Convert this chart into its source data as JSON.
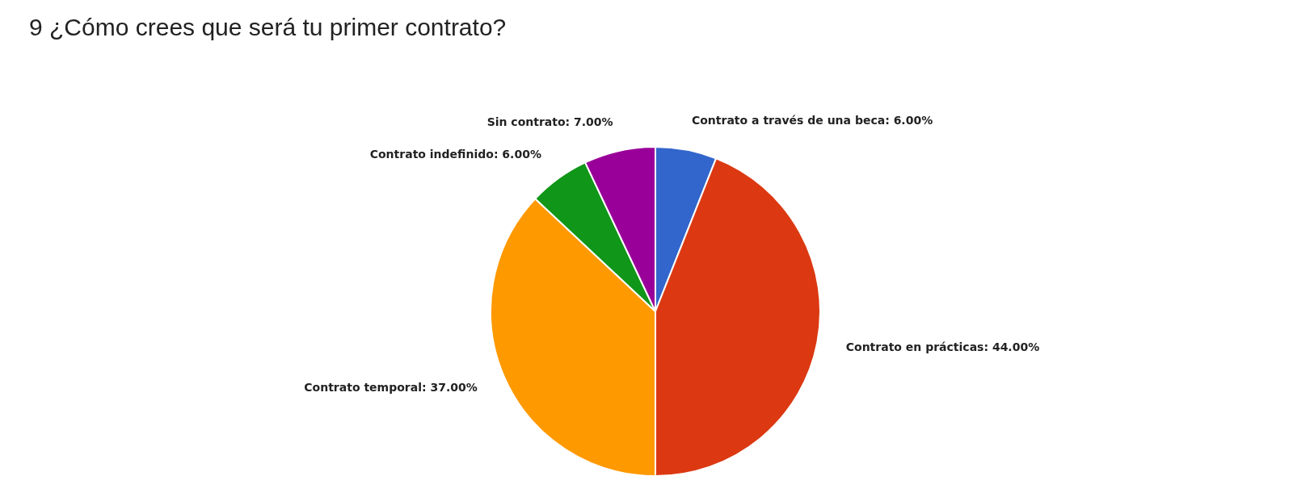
{
  "chart_data": {
    "type": "pie",
    "title": "9 ¿Cómo crees que será tu primer contrato?",
    "categories": [
      "Contrato a través de una beca",
      "Contrato en prácticas",
      "Contrato temporal",
      "Contrato indefinido",
      "Sin contrato"
    ],
    "values": [
      6,
      44,
      37,
      6,
      7
    ],
    "colors": [
      "#3366cc",
      "#dc3912",
      "#ff9900",
      "#109618",
      "#990099"
    ],
    "value_labels": [
      "6.00%",
      "44.00%",
      "37.00%",
      "6.00%",
      "7.00%"
    ]
  }
}
